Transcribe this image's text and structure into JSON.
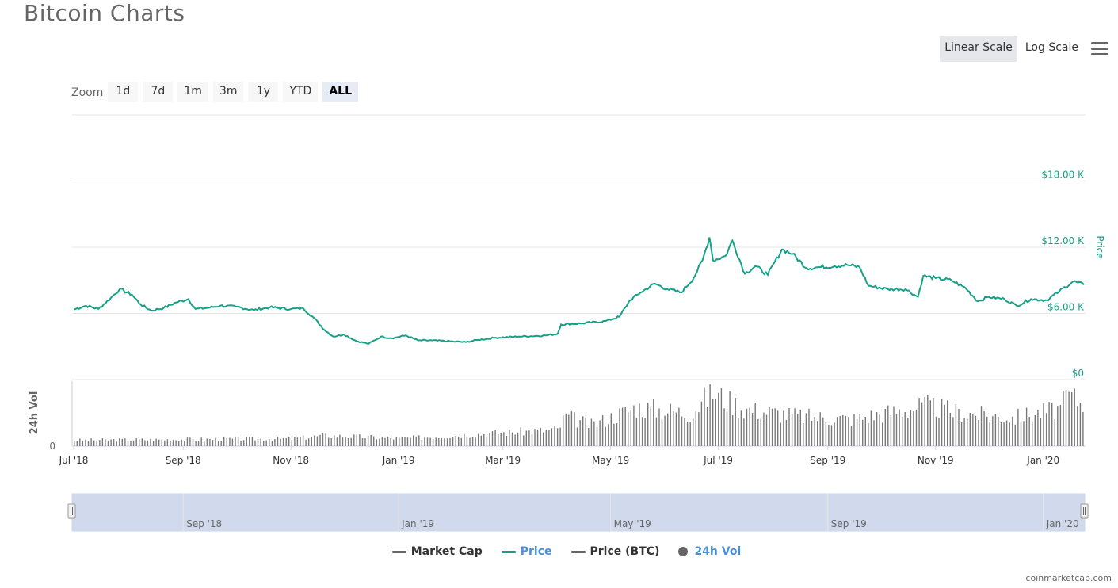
{
  "page": {
    "title": "Bitcoin Charts",
    "credits": "coinmarketcap.com"
  },
  "scale_buttons": [
    {
      "label": "Linear Scale",
      "active": true
    },
    {
      "label": "Log Scale",
      "active": false
    }
  ],
  "zoom": {
    "label": "Zoom",
    "buttons": [
      {
        "label": "1d",
        "active": false
      },
      {
        "label": "7d",
        "active": false
      },
      {
        "label": "1m",
        "active": false
      },
      {
        "label": "3m",
        "active": false
      },
      {
        "label": "1y",
        "active": false
      },
      {
        "label": "YTD",
        "active": false
      },
      {
        "label": "ALL",
        "active": true
      }
    ]
  },
  "legend": [
    {
      "label": "Market Cap",
      "color": "#666666",
      "marker": "line"
    },
    {
      "label": "Price",
      "color": "#16a085",
      "marker": "line"
    },
    {
      "label": "Price (BTC)",
      "color": "#666666",
      "marker": "line"
    },
    {
      "label": "24h Vol",
      "color": "#666666",
      "marker": "dot"
    }
  ],
  "colors": {
    "price": "#16a085",
    "label_price": "#4a90d9",
    "volume": "#666666",
    "navigator": "#ccd6eb"
  },
  "chart_data": {
    "type": "line",
    "x_range": [
      "2018-07-01",
      "2020-01-24"
    ],
    "price_axis": {
      "title": "Price",
      "ylim": [
        0,
        24000
      ],
      "ticks": [
        {
          "value": 0,
          "label": "$0"
        },
        {
          "value": 6000,
          "label": "$6.00 K"
        },
        {
          "value": 12000,
          "label": "$12.00 K"
        },
        {
          "value": 18000,
          "label": "$18.00 K"
        }
      ]
    },
    "volume_axis": {
      "title": "24h Vol",
      "min_label": "0"
    },
    "x_ticks": [
      {
        "date": "2018-07-01",
        "label": "Jul '18"
      },
      {
        "date": "2018-09-01",
        "label": "Sep '18"
      },
      {
        "date": "2018-11-01",
        "label": "Nov '18"
      },
      {
        "date": "2019-01-01",
        "label": "Jan '19"
      },
      {
        "date": "2019-03-01",
        "label": "Mar '19"
      },
      {
        "date": "2019-05-01",
        "label": "May '19"
      },
      {
        "date": "2019-07-01",
        "label": "Jul '19"
      },
      {
        "date": "2019-09-01",
        "label": "Sep '19"
      },
      {
        "date": "2019-11-01",
        "label": "Nov '19"
      },
      {
        "date": "2020-01-01",
        "label": "Jan '20"
      }
    ],
    "navigator_ticks": [
      {
        "date": "2018-09-01",
        "label": "Sep '18"
      },
      {
        "date": "2019-01-01",
        "label": "Jan '19"
      },
      {
        "date": "2019-05-01",
        "label": "May '19"
      },
      {
        "date": "2019-09-01",
        "label": "Sep '19"
      },
      {
        "date": "2020-01-01",
        "label": "Jan '20"
      }
    ],
    "series": [
      {
        "name": "Price",
        "points": [
          [
            "2018-07-01",
            6350
          ],
          [
            "2018-07-08",
            6700
          ],
          [
            "2018-07-15",
            6400
          ],
          [
            "2018-07-22",
            7400
          ],
          [
            "2018-07-27",
            8200
          ],
          [
            "2018-08-03",
            7700
          ],
          [
            "2018-08-08",
            6800
          ],
          [
            "2018-08-14",
            6250
          ],
          [
            "2018-08-21",
            6500
          ],
          [
            "2018-08-28",
            7000
          ],
          [
            "2018-09-04",
            7300
          ],
          [
            "2018-09-08",
            6400
          ],
          [
            "2018-09-15",
            6500
          ],
          [
            "2018-09-22",
            6700
          ],
          [
            "2018-10-01",
            6600
          ],
          [
            "2018-10-11",
            6300
          ],
          [
            "2018-10-20",
            6550
          ],
          [
            "2018-11-01",
            6400
          ],
          [
            "2018-11-08",
            6450
          ],
          [
            "2018-11-14",
            5600
          ],
          [
            "2018-11-20",
            4500
          ],
          [
            "2018-11-25",
            3900
          ],
          [
            "2018-12-01",
            4100
          ],
          [
            "2018-12-08",
            3500
          ],
          [
            "2018-12-15",
            3250
          ],
          [
            "2018-12-22",
            3900
          ],
          [
            "2018-12-28",
            3750
          ],
          [
            "2019-01-05",
            4000
          ],
          [
            "2019-01-12",
            3550
          ],
          [
            "2019-01-20",
            3550
          ],
          [
            "2019-02-01",
            3450
          ],
          [
            "2019-02-08",
            3400
          ],
          [
            "2019-02-15",
            3600
          ],
          [
            "2019-02-25",
            3800
          ],
          [
            "2019-03-10",
            3900
          ],
          [
            "2019-03-25",
            4000
          ],
          [
            "2019-04-01",
            4150
          ],
          [
            "2019-04-03",
            5000
          ],
          [
            "2019-04-15",
            5100
          ],
          [
            "2019-04-28",
            5300
          ],
          [
            "2019-05-06",
            5700
          ],
          [
            "2019-05-12",
            7200
          ],
          [
            "2019-05-18",
            7900
          ],
          [
            "2019-05-26",
            8700
          ],
          [
            "2019-06-02",
            8200
          ],
          [
            "2019-06-10",
            7900
          ],
          [
            "2019-06-17",
            9200
          ],
          [
            "2019-06-22",
            10800
          ],
          [
            "2019-06-26",
            12900
          ],
          [
            "2019-06-28",
            10800
          ],
          [
            "2019-07-05",
            11200
          ],
          [
            "2019-07-09",
            12600
          ],
          [
            "2019-07-16",
            9600
          ],
          [
            "2019-07-22",
            10300
          ],
          [
            "2019-07-29",
            9500
          ],
          [
            "2019-08-06",
            11800
          ],
          [
            "2019-08-12",
            11400
          ],
          [
            "2019-08-20",
            10100
          ],
          [
            "2019-08-28",
            10200
          ],
          [
            "2019-09-05",
            10300
          ],
          [
            "2019-09-12",
            10400
          ],
          [
            "2019-09-19",
            10200
          ],
          [
            "2019-09-24",
            8500
          ],
          [
            "2019-10-05",
            8200
          ],
          [
            "2019-10-15",
            8200
          ],
          [
            "2019-10-22",
            7500
          ],
          [
            "2019-10-25",
            9400
          ],
          [
            "2019-11-01",
            9200
          ],
          [
            "2019-11-10",
            9000
          ],
          [
            "2019-11-18",
            8300
          ],
          [
            "2019-11-25",
            7100
          ],
          [
            "2019-12-01",
            7500
          ],
          [
            "2019-12-10",
            7300
          ],
          [
            "2019-12-17",
            6700
          ],
          [
            "2019-12-25",
            7300
          ],
          [
            "2020-01-03",
            7200
          ],
          [
            "2020-01-10",
            8000
          ],
          [
            "2020-01-18",
            8900
          ],
          [
            "2020-01-24",
            8600
          ]
        ]
      },
      {
        "name": "24h Vol",
        "note_units": "relative volume",
        "points": [
          [
            "2018-07-01",
            4
          ],
          [
            "2018-09-01",
            4.5
          ],
          [
            "2018-11-01",
            5
          ],
          [
            "2018-11-20",
            7
          ],
          [
            "2018-12-15",
            6
          ],
          [
            "2019-01-01",
            5
          ],
          [
            "2019-03-01",
            9
          ],
          [
            "2019-04-01",
            11
          ],
          [
            "2019-04-05",
            20
          ],
          [
            "2019-04-20",
            14
          ],
          [
            "2019-05-15",
            26
          ],
          [
            "2019-06-15",
            22
          ],
          [
            "2019-06-27",
            36
          ],
          [
            "2019-07-15",
            25
          ],
          [
            "2019-08-15",
            20
          ],
          [
            "2019-09-15",
            18
          ],
          [
            "2019-10-26",
            27
          ],
          [
            "2019-11-15",
            22
          ],
          [
            "2019-12-15",
            19
          ],
          [
            "2020-01-10",
            25
          ],
          [
            "2020-01-15",
            34
          ],
          [
            "2020-01-24",
            28
          ]
        ]
      }
    ]
  }
}
